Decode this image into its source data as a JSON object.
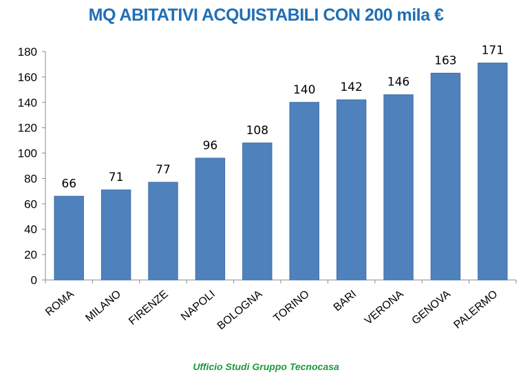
{
  "colors": {
    "title": "#1f6fb6",
    "bar": "#4f81bd",
    "bar_edge": "#3f6ea8",
    "axis": "#888888",
    "footer": "#1a9a3a"
  },
  "footer": {
    "text": "Ufficio Studi Gruppo Tecnocasa"
  },
  "chart_data": {
    "type": "bar",
    "title": "MQ ABITATIVI ACQUISTABILI CON 200 mila €",
    "xlabel": "",
    "ylabel": "",
    "categories": [
      "ROMA",
      "MILANO",
      "FIRENZE",
      "NAPOLI",
      "BOLOGNA",
      "TORINO",
      "BARI",
      "VERONA",
      "GENOVA",
      "PALERMO"
    ],
    "values": [
      66,
      71,
      77,
      96,
      108,
      140,
      142,
      146,
      163,
      171
    ],
    "ylim": [
      0,
      180
    ],
    "yticks": [
      0,
      20,
      40,
      60,
      80,
      100,
      120,
      140,
      160,
      180
    ],
    "grid": false,
    "legend": "none"
  }
}
